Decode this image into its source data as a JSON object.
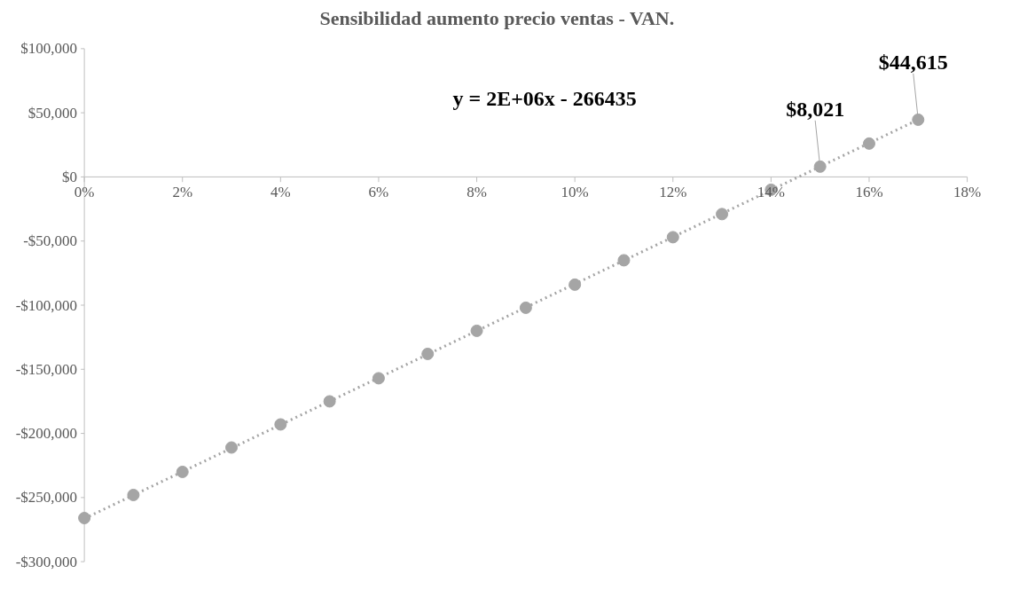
{
  "chart_data": {
    "type": "scatter",
    "title": "Sensibilidad aumento precio ventas - VAN.",
    "x": [
      0,
      0.01,
      0.02,
      0.03,
      0.04,
      0.05,
      0.06,
      0.07,
      0.08,
      0.09,
      0.1,
      0.11,
      0.12,
      0.13,
      0.14,
      0.15,
      0.16,
      0.17
    ],
    "series": [
      {
        "color": "#a5a5a5",
        "values": [
          -266000,
          -248000,
          -230000,
          -211000,
          -193000,
          -175000,
          -157000,
          -138000,
          -120000,
          -102000,
          -84000,
          -65000,
          -47000,
          -29000,
          -10000,
          8021,
          26000,
          44615
        ],
        "value_labels": [
          null,
          null,
          null,
          null,
          null,
          null,
          null,
          null,
          null,
          null,
          null,
          null,
          null,
          null,
          null,
          "$8,021",
          null,
          "$44,615"
        ]
      },
      {
        "type": "line",
        "color": "#a5a5a5",
        "line_style": "dotted",
        "marker": "none",
        "x": [
          0,
          0.17
        ],
        "values": [
          -266435,
          44615
        ]
      }
    ],
    "marker": "circle",
    "annotations": [
      "y = 2E+06x - 266435"
    ],
    "xlim": [
      0,
      0.18
    ],
    "xticks": [
      {
        "value": 0,
        "label": "0%"
      },
      {
        "value": 0.02,
        "label": "2%"
      },
      {
        "value": 0.04,
        "label": "4%"
      },
      {
        "value": 0.06,
        "label": "6%"
      },
      {
        "value": 0.08,
        "label": "8%"
      },
      {
        "value": 0.1,
        "label": "10%"
      },
      {
        "value": 0.12,
        "label": "12%"
      },
      {
        "value": 0.14,
        "label": "14%"
      },
      {
        "value": 0.16,
        "label": "16%"
      },
      {
        "value": 0.18,
        "label": "18%"
      }
    ],
    "ylim": [
      -300000,
      100000
    ],
    "yticks": [
      {
        "value": -300000,
        "label": "-$300,000"
      },
      {
        "value": -250000,
        "label": "-$250,000"
      },
      {
        "value": -200000,
        "label": "-$200,000"
      },
      {
        "value": -150000,
        "label": "-$150,000"
      },
      {
        "value": -100000,
        "label": "-$100,000"
      },
      {
        "value": -50000,
        "label": "-$50,000"
      },
      {
        "value": 0,
        "label": "$0"
      },
      {
        "value": 50000,
        "label": "$50,000"
      },
      {
        "value": 100000,
        "label": "$100,000"
      }
    ],
    "grid": false
  }
}
